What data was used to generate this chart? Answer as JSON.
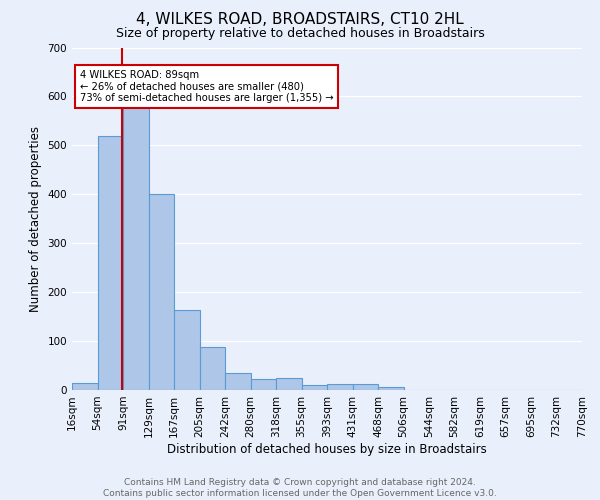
{
  "title": "4, WILKES ROAD, BROADSTAIRS, CT10 2HL",
  "subtitle": "Size of property relative to detached houses in Broadstairs",
  "xlabel": "Distribution of detached houses by size in Broadstairs",
  "ylabel": "Number of detached properties",
  "bin_labels": [
    "16sqm",
    "54sqm",
    "91sqm",
    "129sqm",
    "167sqm",
    "205sqm",
    "242sqm",
    "280sqm",
    "318sqm",
    "355sqm",
    "393sqm",
    "431sqm",
    "468sqm",
    "506sqm",
    "544sqm",
    "582sqm",
    "619sqm",
    "657sqm",
    "695sqm",
    "732sqm",
    "770sqm"
  ],
  "bar_values": [
    15,
    520,
    590,
    400,
    163,
    88,
    35,
    22,
    24,
    10,
    13,
    12,
    6,
    0,
    0,
    0,
    0,
    0,
    0,
    0
  ],
  "bar_color": "#aec6e8",
  "bar_edge_color": "#5b9bd5",
  "property_line_color": "#cc0000",
  "annotation_text": "4 WILKES ROAD: 89sqm\n← 26% of detached houses are smaller (480)\n73% of semi-detached houses are larger (1,355) →",
  "annotation_box_color": "#ffffff",
  "annotation_box_edge": "#cc0000",
  "ylim": [
    0,
    700
  ],
  "yticks": [
    0,
    100,
    200,
    300,
    400,
    500,
    600,
    700
  ],
  "footer": "Contains HM Land Registry data © Crown copyright and database right 2024.\nContains public sector information licensed under the Open Government Licence v3.0.",
  "bg_color": "#eaf0fb",
  "grid_color": "#ffffff",
  "title_fontsize": 11,
  "subtitle_fontsize": 9,
  "axis_label_fontsize": 8.5,
  "tick_fontsize": 7.5,
  "footer_fontsize": 6.5,
  "bin_edges": [
    16,
    54,
    91,
    129,
    167,
    205,
    242,
    280,
    318,
    355,
    393,
    431,
    468,
    506,
    544,
    582,
    619,
    657,
    695,
    732,
    770
  ],
  "prop_val": 89
}
